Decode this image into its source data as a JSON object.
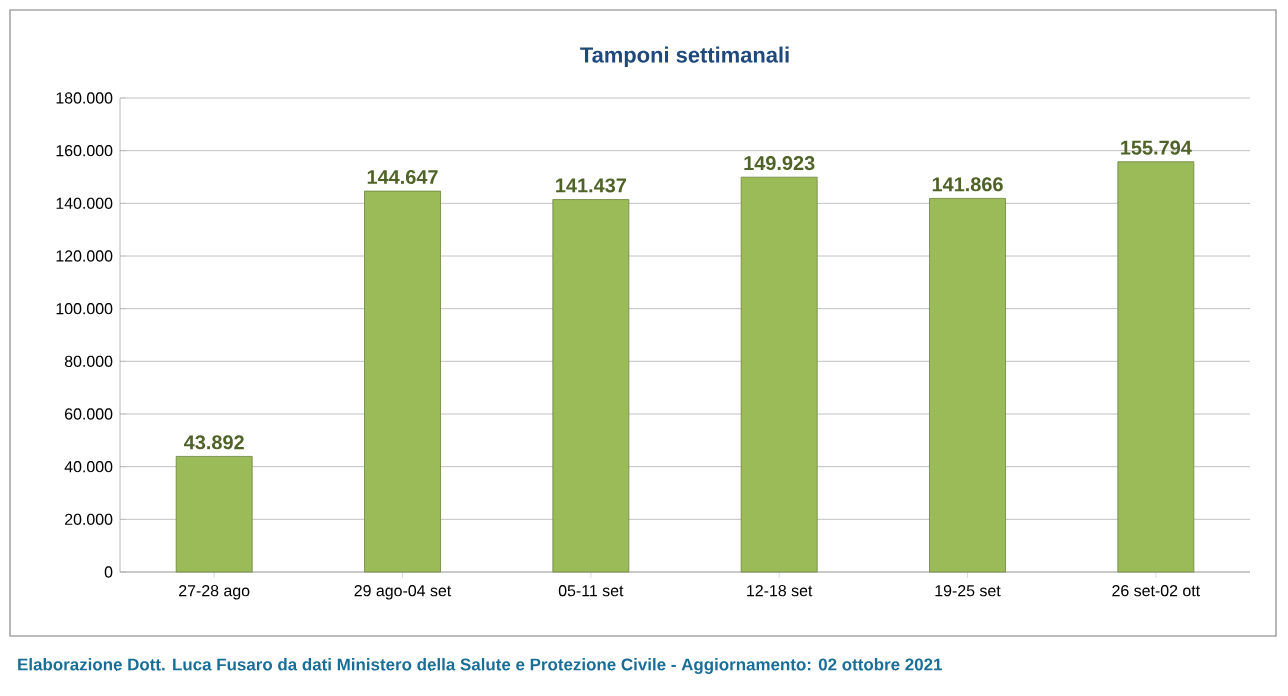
{
  "chart_data": {
    "type": "bar",
    "title": "Tamponi settimanali",
    "categories": [
      "27-28 ago",
      "29 ago-04 set",
      "05-11 set",
      "12-18 set",
      "19-25 set",
      "26 set-02 ott"
    ],
    "values": [
      43892,
      144647,
      141437,
      149923,
      141866,
      155794
    ],
    "value_labels": [
      "43.892",
      "144.647",
      "141.437",
      "149.923",
      "141.866",
      "155.794"
    ],
    "color": "#9bbb59",
    "ylim": [
      0,
      180000
    ],
    "yticks": [
      {
        "value": 0,
        "label": "0"
      },
      {
        "value": 20000,
        "label": "20.000"
      },
      {
        "value": 40000,
        "label": "40.000"
      },
      {
        "value": 60000,
        "label": "60.000"
      },
      {
        "value": 80000,
        "label": "80.000"
      },
      {
        "value": 100000,
        "label": "100.000"
      },
      {
        "value": 120000,
        "label": "120.000"
      },
      {
        "value": 140000,
        "label": "140.000"
      },
      {
        "value": 160000,
        "label": "160.000"
      },
      {
        "value": 180000,
        "label": "180.000"
      }
    ],
    "grid": "y",
    "annotations": [
      "Elaborazione Dott. Luca Fusaro da dati Ministero della Salute e Protezione Civile - Aggiornamento: 02 ottobre 2021"
    ]
  }
}
